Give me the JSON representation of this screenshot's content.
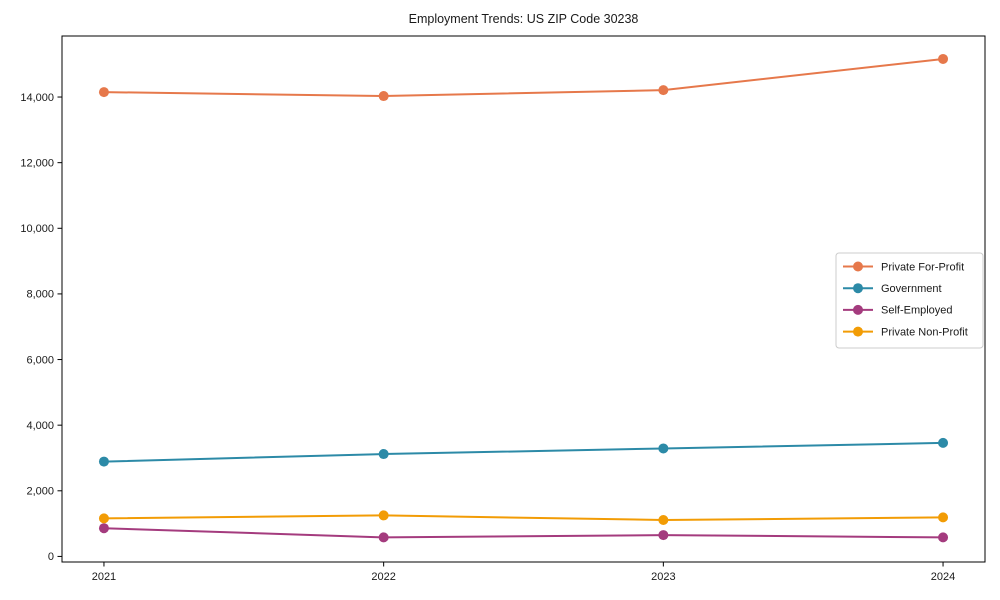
{
  "figure": {
    "title": "Employment Trends: US ZIP Code 30238"
  },
  "chart_data": {
    "type": "line",
    "title": "Employment Trends: US ZIP Code 30238",
    "xlabel": "",
    "ylabel": "",
    "categories": [
      "2021",
      "2022",
      "2023",
      "2024"
    ],
    "series": [
      {
        "name": "Private For-Profit",
        "color": "#E6784B",
        "values": [
          14150,
          14030,
          14210,
          15160
        ]
      },
      {
        "name": "Government",
        "color": "#2C8AA7",
        "values": [
          2890,
          3120,
          3290,
          3460
        ]
      },
      {
        "name": "Self-Employed",
        "color": "#A43B7E",
        "values": [
          860,
          580,
          650,
          580
        ]
      },
      {
        "name": "Private Non-Profit",
        "color": "#F29C05",
        "values": [
          1160,
          1250,
          1110,
          1190
        ]
      }
    ],
    "yticks": [
      0,
      2000,
      4000,
      6000,
      8000,
      10000,
      12000,
      14000
    ],
    "ytick_labels": [
      "0",
      "2,000",
      "4,000",
      "6,000",
      "8,000",
      "10,000",
      "12,000",
      "14,000"
    ],
    "ylim": [
      -170,
      15860
    ],
    "grid": false,
    "marker": "circle",
    "legend_position": "center right",
    "axis_color": "#000000",
    "text_color": "#1a1a1a",
    "legend_border_color": "#cccccc",
    "background_color": "#ffffff"
  }
}
